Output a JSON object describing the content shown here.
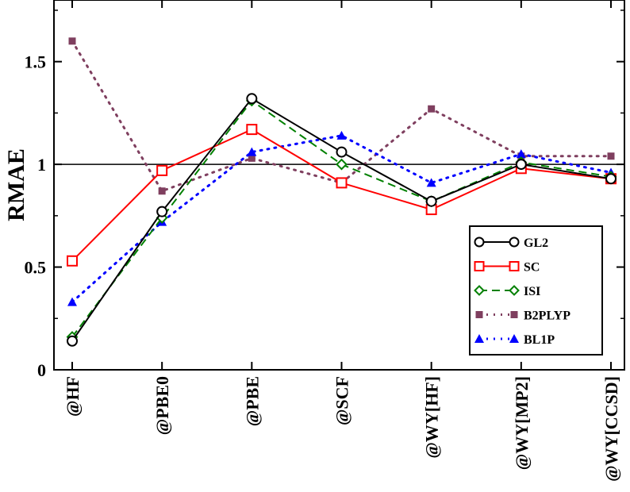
{
  "chart_data": {
    "type": "line",
    "ylabel": "RMAE",
    "xlabel": "",
    "categories": [
      "@HF",
      "@PBE0",
      "@PBE",
      "@SCF",
      "@WY[HF]",
      "@WY[MP2]",
      "@WY[CCSD]"
    ],
    "ylim": [
      0,
      1.8
    ],
    "yticks": [
      0,
      0.5,
      1,
      1.5
    ],
    "ytick_labels": [
      "0",
      "0.5",
      "1",
      "1.5"
    ],
    "reference_line": 1,
    "grid": false,
    "legend_position": "bottom-right",
    "series": [
      {
        "name": "GL2",
        "color": "#000000",
        "dash": "solid",
        "marker": "open-circle",
        "values": [
          0.14,
          0.77,
          1.32,
          1.06,
          0.82,
          1.0,
          0.93
        ]
      },
      {
        "name": "SC",
        "color": "#ff0000",
        "dash": "solid",
        "marker": "open-square",
        "values": [
          0.53,
          0.97,
          1.17,
          0.91,
          0.78,
          0.98,
          0.93
        ]
      },
      {
        "name": "ISI",
        "color": "#008000",
        "dash": "dashed",
        "marker": "open-diamond",
        "values": [
          0.16,
          0.74,
          1.31,
          1.0,
          0.82,
          1.01,
          0.94
        ]
      },
      {
        "name": "B2PLYP",
        "color": "#7f3f5f",
        "dash": "dotted",
        "marker": "filled-square",
        "values": [
          1.6,
          0.87,
          1.03,
          0.91,
          1.27,
          1.04,
          1.04
        ]
      },
      {
        "name": "BL1P",
        "color": "#0000ff",
        "dash": "dotted",
        "marker": "filled-triangle",
        "values": [
          0.33,
          0.72,
          1.06,
          1.14,
          0.91,
          1.05,
          0.96
        ]
      }
    ]
  }
}
